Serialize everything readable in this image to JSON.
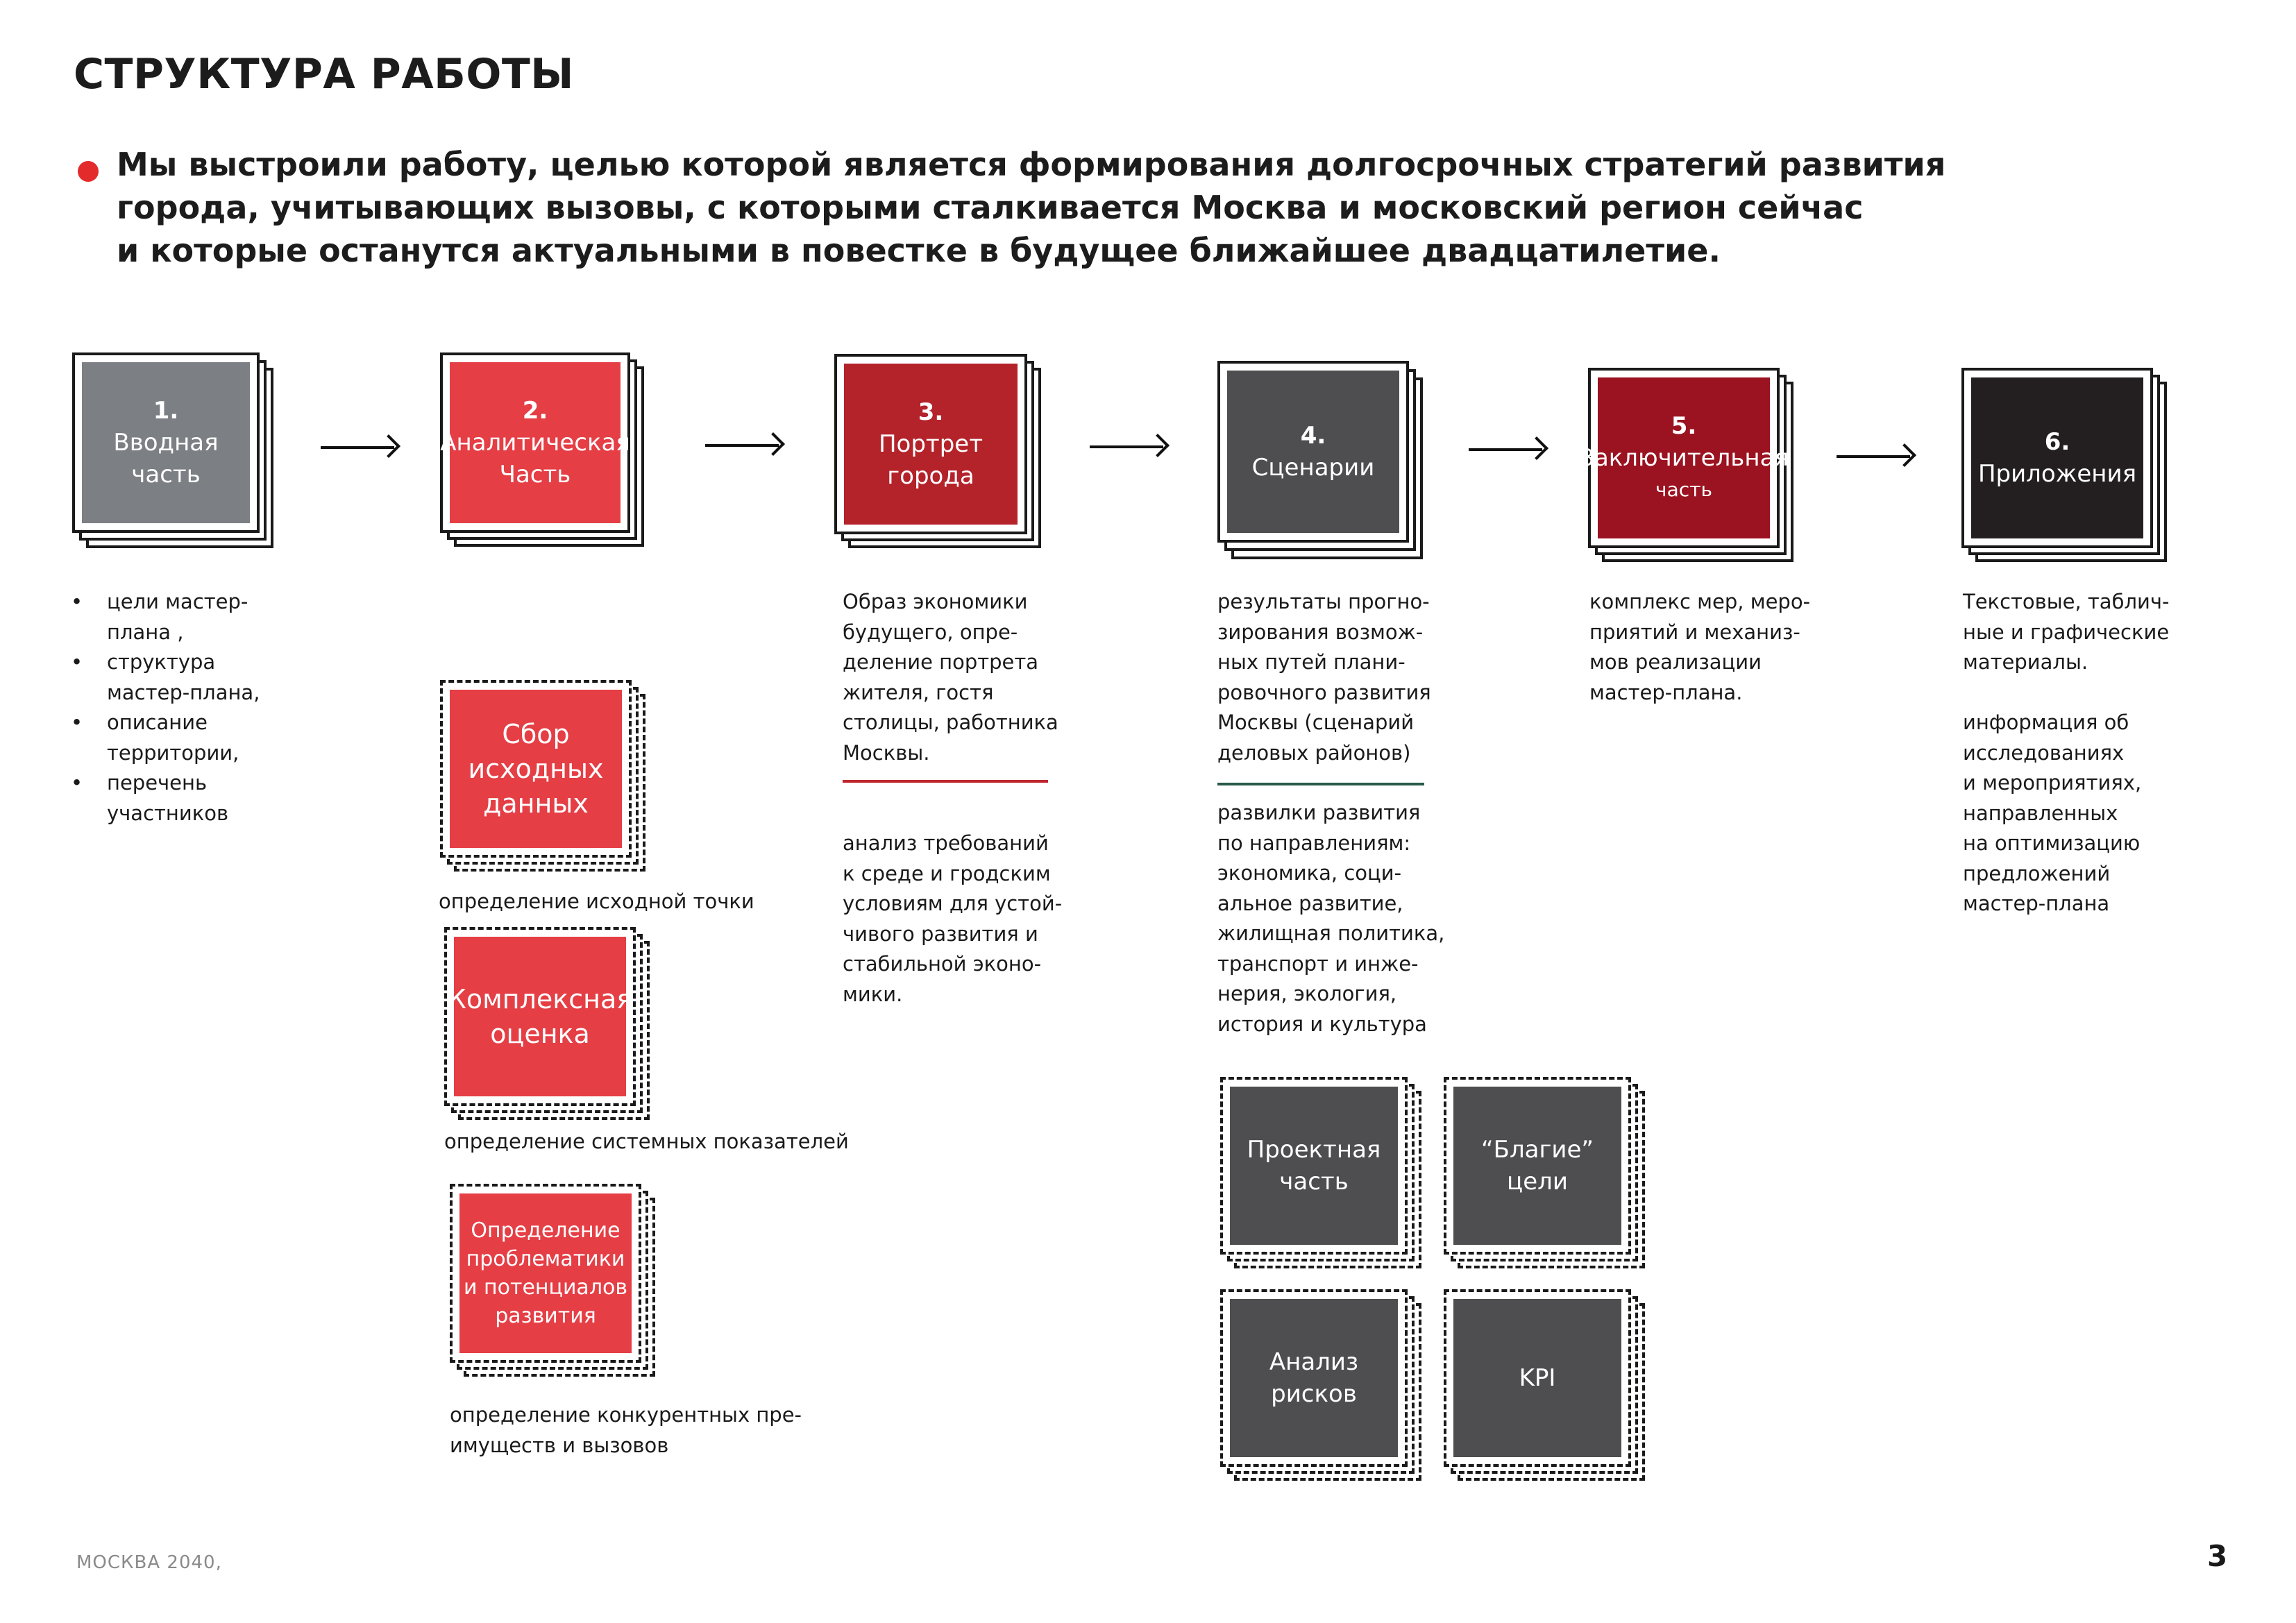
{
  "title": "СТРУКТУРА РАБОТЫ",
  "intro": {
    "lines": [
      "Мы выстроили работу, целью которой является формирования долгосрочных стратегий развития",
      "города, учитывающих вызовы, с которыми сталкивается Москва и московский регион сейчас",
      "и которые останутся актуальными в повестке в будущее ближайшее двадцатилетие."
    ]
  },
  "colors": {
    "grey": "#7c7f83",
    "red": "#e53e45",
    "dark_red": "#b4222a",
    "charcoal": "#4e4e50",
    "maroon": "#9b1220",
    "black": "#231f20",
    "bullet": "#e42b2b"
  },
  "stages": [
    {
      "num": "1.",
      "label1": "Вводная",
      "label2": "часть"
    },
    {
      "num": "2.",
      "label1": "Аналитическая",
      "label2": "Часть"
    },
    {
      "num": "3.",
      "label1": "Портрет",
      "label2": "города"
    },
    {
      "num": "4.",
      "label1": "Сценарии",
      "label2": ""
    },
    {
      "num": "5.",
      "label1": "Заключительная",
      "label2": "часть"
    },
    {
      "num": "6.",
      "label1": "Приложения",
      "label2": ""
    }
  ],
  "stage1_list": [
    {
      "bullet": "•",
      "lines": [
        "цели мастер-",
        "плана ,"
      ]
    },
    {
      "bullet": "•",
      "lines": [
        "структура",
        "мастер-плана,"
      ]
    },
    {
      "bullet": "•",
      "lines": [
        "описание",
        "территории,"
      ]
    },
    {
      "bullet": "•",
      "lines": [
        "перечень",
        "участников"
      ]
    }
  ],
  "stage2_subs": [
    {
      "lines": [
        "Сбор",
        "исходных",
        "данных"
      ],
      "caption": "определение исходной точки"
    },
    {
      "lines": [
        "Комплексная",
        "оценка"
      ],
      "caption": "определение системных показателей"
    },
    {
      "lines": [
        "Определение",
        "проблематики",
        "и потенциалов",
        "развития"
      ],
      "caption_lines": [
        "определение конкурентных пре-",
        "имуществ и вызовов"
      ]
    }
  ],
  "stage3_text_a": [
    "Образ экономики",
    "будущего, опре-",
    "деление портрета",
    "жителя, гостя",
    "столицы, работника",
    "Москвы."
  ],
  "stage3_text_b": [
    "анализ требований",
    "к среде и гродским",
    "условиям  для устой-",
    "чивого развития и",
    "стабильной эконо-",
    "мики."
  ],
  "stage4_text_a": [
    "результаты прогно-",
    "зирования возмож-",
    "ных путей  плани-",
    "ровочного развития",
    "Москвы (сценарий",
    "деловых районов)"
  ],
  "stage4_text_b": [
    "развилки развития",
    "по направлениям:",
    "экономика, соци-",
    "альное развитие,",
    "жилищная политика,",
    "транспорт и инже-",
    "нерия, экология,",
    "история и культура"
  ],
  "stage4_subs": [
    {
      "lines": [
        "Проектная",
        "часть"
      ]
    },
    {
      "lines": [
        "“Благие”",
        "цели"
      ]
    },
    {
      "lines": [
        "Анализ",
        "рисков"
      ]
    },
    {
      "lines": [
        "KPI"
      ]
    }
  ],
  "stage5_text": [
    "комплекс мер, меро-",
    "приятий и механиз-",
    "мов реализации",
    "мастер-плана."
  ],
  "stage6_text_a": [
    "Текстовые, таблич-",
    "ные и графические",
    "материалы."
  ],
  "stage6_text_b": [
    "информация об",
    "исследованиях",
    "и мероприятиях,",
    "направленных",
    "на оптимизацию",
    "предложений",
    "мастер-плана"
  ],
  "footer": {
    "left": "МОСКВА 2040,",
    "page": "3"
  }
}
